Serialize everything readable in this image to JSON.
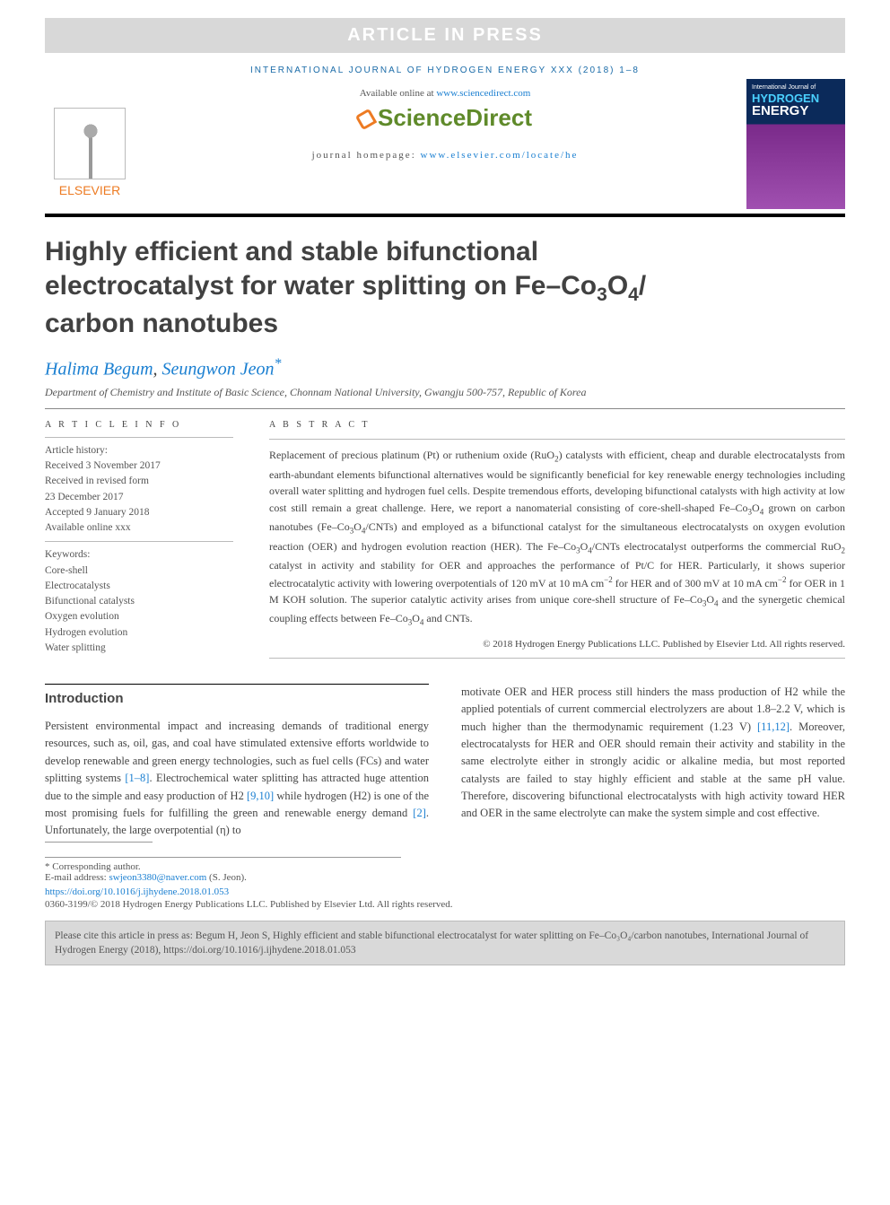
{
  "banner": "ARTICLE IN PRESS",
  "journal_header": "INTERNATIONAL JOURNAL OF HYDROGEN ENERGY XXX (2018) 1–8",
  "available": {
    "pre": "Available online at ",
    "url": "www.sciencedirect.com"
  },
  "sd_brand": "ScienceDirect",
  "homepage": {
    "pre": "journal homepage: ",
    "url": "www.elsevier.com/locate/he"
  },
  "elsevier_brand": "ELSEVIER",
  "cover": {
    "line1": "International Journal of",
    "line2": "HYDROGEN",
    "line3": "ENERGY"
  },
  "title_parts": {
    "l1": "Highly efficient and stable bifunctional",
    "l2a": "electrocatalyst for water splitting on Fe–Co",
    "l2b": "3",
    "l2c": "O",
    "l2d": "4",
    "l2e": "/",
    "l3": "carbon nanotubes"
  },
  "authors": {
    "a1": "Halima Begum",
    "sep": ", ",
    "a2": "Seungwon Jeon",
    "star": "*"
  },
  "affiliation": "Department of Chemistry and Institute of Basic Science, Chonnam National University, Gwangju 500-757, Republic of Korea",
  "info_label": "A R T I C L E   I N F O",
  "history_label": "Article history:",
  "history": [
    "Received 3 November 2017",
    "Received in revised form",
    "23 December 2017",
    "Accepted 9 January 2018",
    "Available online xxx"
  ],
  "keywords_label": "Keywords:",
  "keywords": [
    "Core-shell",
    "Electrocatalysts",
    "Bifunctional catalysts",
    "Oxygen evolution",
    "Hydrogen evolution",
    "Water splitting"
  ],
  "abstract_label": "A B S T R A C T",
  "abstract_html": "Replacement of precious platinum (Pt) or ruthenium oxide (RuO<span class='abs-sub'>2</span>) catalysts with efficient, cheap and durable electrocatalysts from earth-abundant elements bifunctional alternatives would be significantly beneficial for key renewable energy technologies including overall water splitting and hydrogen fuel cells. Despite tremendous efforts, developing bifunctional catalysts with high activity at low cost still remain a great challenge. Here, we report a nanomaterial consisting of core-shell-shaped Fe–Co<span class='abs-sub'>3</span>O<span class='abs-sub'>4</span> grown on carbon nanotubes (Fe–Co<span class='abs-sub'>3</span>O<span class='abs-sub'>4</span>/CNTs) and employed as a bifunctional catalyst for the simultaneous electrocatalysts on oxygen evolution reaction (OER) and hydrogen evolution reaction (HER). The Fe–Co<span class='abs-sub'>3</span>O<span class='abs-sub'>4</span>/CNTs electrocatalyst outperforms the commercial RuO<span class='abs-sub'>2</span> catalyst in activity and stability for OER and approaches the performance of Pt/C for HER. Particularly, it shows superior electrocatalytic activity with lowering overpotentials of 120 mV at 10 mA cm<span class='abs-sup'>−2</span> for HER and of 300 mV at 10 mA cm<span class='abs-sup'>−2</span> for OER in 1 M KOH solution. The superior catalytic activity arises from unique core-shell structure of Fe–Co<span class='abs-sub'>3</span>O<span class='abs-sub'>4</span> and the synergetic chemical coupling effects between Fe–Co<span class='abs-sub'>3</span>O<span class='abs-sub'>4</span> and CNTs.",
  "abs_copyright": "© 2018 Hydrogen Energy Publications LLC. Published by Elsevier Ltd. All rights reserved.",
  "section": "Introduction",
  "col1_html": "Persistent environmental impact and increasing demands of traditional energy resources, such as, oil, gas, and coal have stimulated extensive efforts worldwide to develop renewable and green energy technologies, such as fuel cells (FCs) and water splitting systems <span class='ref'>[1–8]</span>. Electrochemical water splitting has attracted huge attention due to the simple and easy production of H<span class='abs-sub'>2</span> <span class='ref'>[9,10]</span> while hydrogen (H<span class='abs-sub'>2</span>) is one of the most promising fuels for fulfilling the green and renewable energy demand <span class='ref'>[2]</span>. Unfortunately, the large overpotential (η) to",
  "col2_html": "motivate OER and HER process still hinders the mass production of H<span class='abs-sub'>2</span> while the applied potentials of current commercial electrolyzers are about 1.8–2.2 V, which is much higher than the thermodynamic requirement (1.23 V) <span class='ref'>[11,12]</span>. Moreover, electrocatalysts for HER and OER should remain their activity and stability in the same electrolyte either in strongly acidic or alkaline media, but most reported catalysts are failed to stay highly efficient and stable at the same pH value. Therefore, discovering bifunctional electrocatalysts with high activity toward HER and OER in the same electrolyte can make the system simple and cost effective.",
  "corr": {
    "label": "* Corresponding author.",
    "em_label": "E-mail address: ",
    "email": "swjeon3380@naver.com",
    "suffix": " (S. Jeon)."
  },
  "doi": "https://doi.org/10.1016/j.ijhydene.2018.01.053",
  "issn": "0360-3199/© 2018 Hydrogen Energy Publications LLC. Published by Elsevier Ltd. All rights reserved.",
  "cite_box": "Please cite this article in press as: Begum H, Jeon S, Highly efficient and stable bifunctional electrocatalyst for water splitting on Fe–Co₃O₄/carbon nanotubes, International Journal of Hydrogen Energy (2018), https://doi.org/10.1016/j.ijhydene.2018.01.053",
  "colors": {
    "banner_bg": "#d8d8d8",
    "banner_fg": "#ffffff",
    "link": "#1a7fd1",
    "sd_green": "#5f8a2a",
    "elsevier_orange": "#ed7b23",
    "cover_top": "#0b2a5a",
    "cover_bottom": "#a050b0",
    "text": "#444444"
  },
  "typography": {
    "title_fontsize": 30,
    "author_fontsize": 20,
    "body_fontsize": 12.5,
    "abstract_fontsize": 12,
    "meta_fontsize": 11.5
  }
}
